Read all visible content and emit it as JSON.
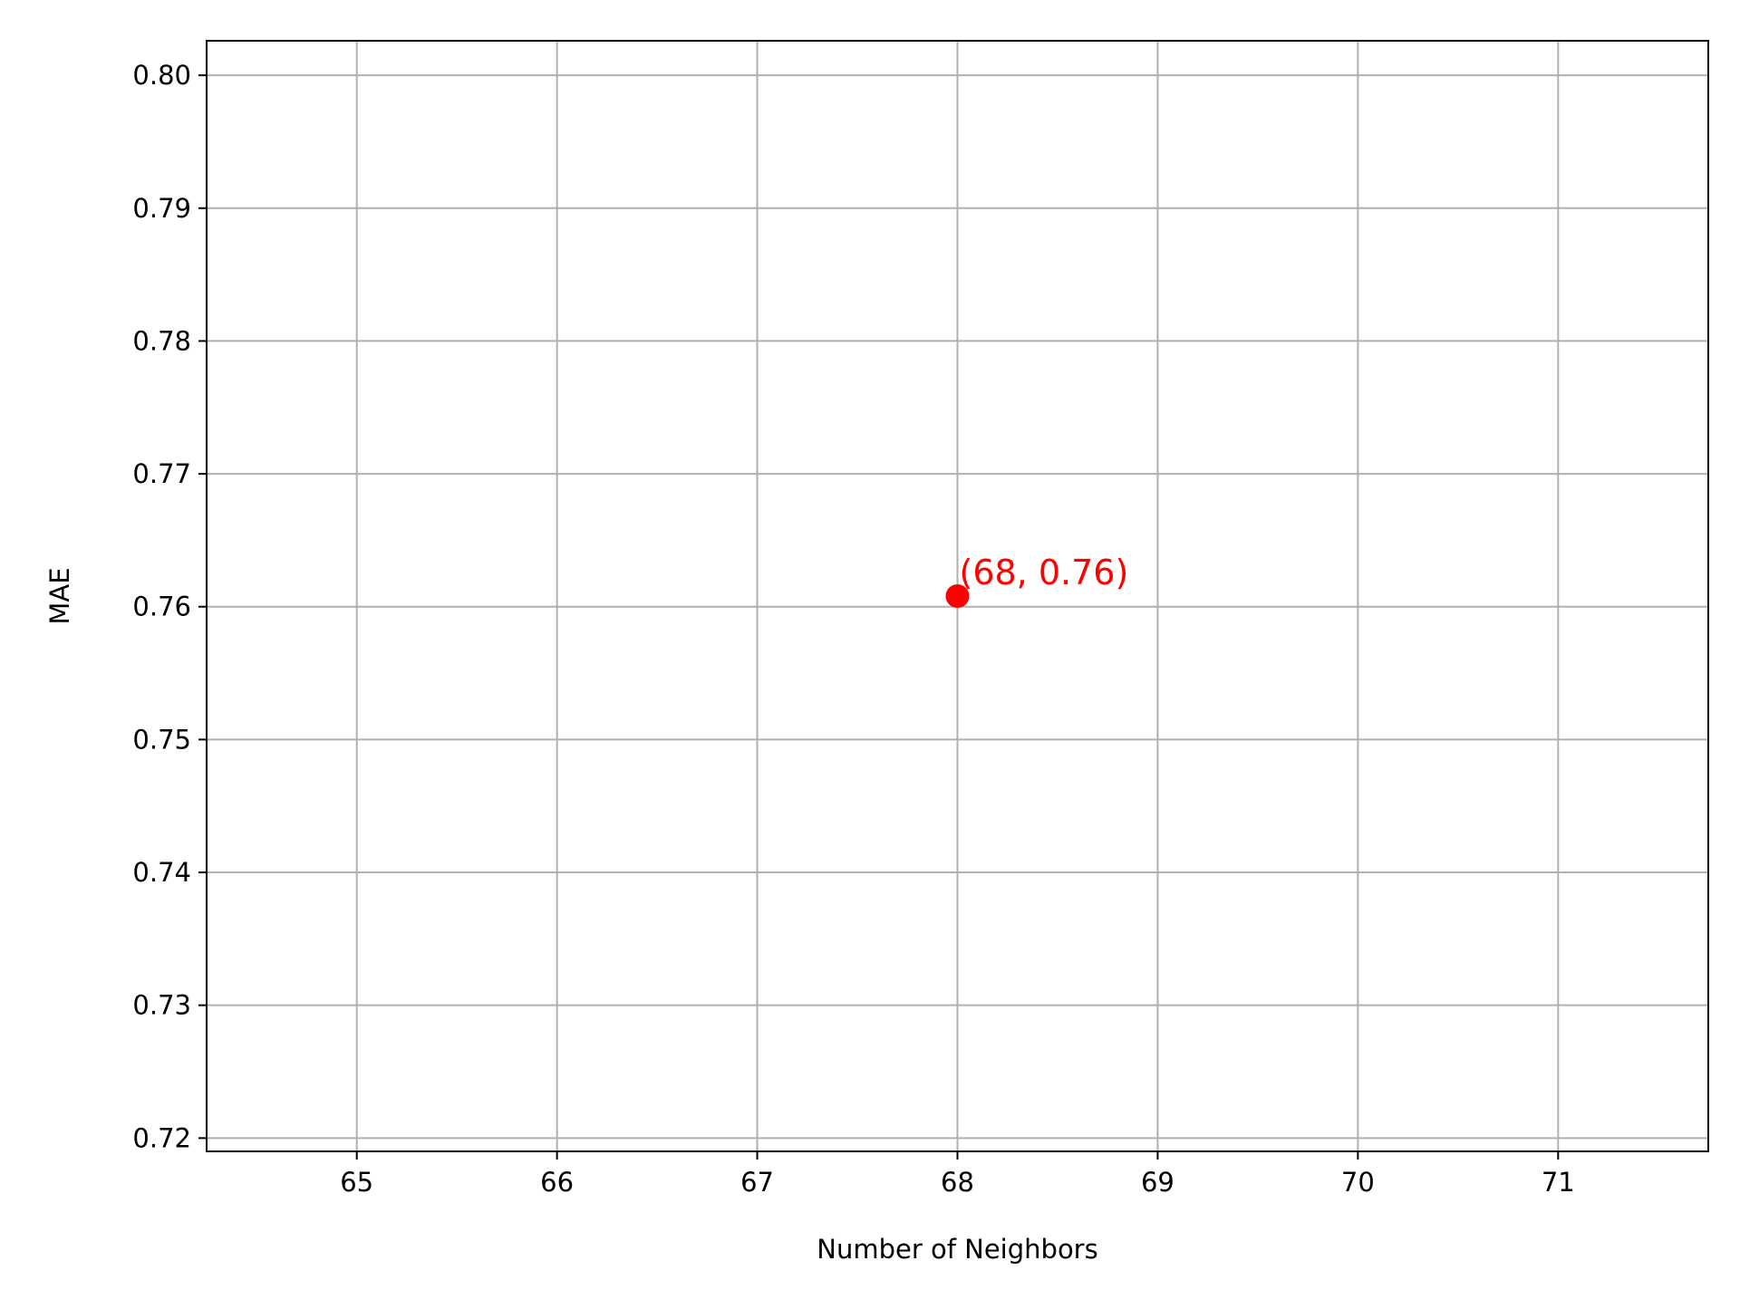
{
  "chart_data": {
    "type": "scatter",
    "title": "",
    "xlabel": "Number of Neighbors",
    "ylabel": "MAE",
    "xlim": [
      64.25,
      71.75
    ],
    "ylim": [
      0.719,
      0.8026
    ],
    "xticks": [
      65,
      66,
      67,
      68,
      69,
      70,
      71
    ],
    "xtick_labels": [
      "65",
      "66",
      "67",
      "68",
      "69",
      "70",
      "71"
    ],
    "yticks": [
      0.72,
      0.73,
      0.74,
      0.75,
      0.76,
      0.77,
      0.78,
      0.79,
      0.8
    ],
    "ytick_labels": [
      "0.72",
      "0.73",
      "0.74",
      "0.75",
      "0.76",
      "0.77",
      "0.78",
      "0.79",
      "0.80"
    ],
    "grid": true,
    "points": [
      {
        "x": 68,
        "y": 0.7608,
        "color": "#ff0000"
      }
    ],
    "annotations": [
      {
        "text": "(68, 0.76)",
        "x": 68,
        "y": 0.7608,
        "color": "#ff0000"
      }
    ],
    "colors": {
      "grid": "#b0b0b0",
      "axes": "#000000",
      "point": "#ff0000"
    }
  }
}
